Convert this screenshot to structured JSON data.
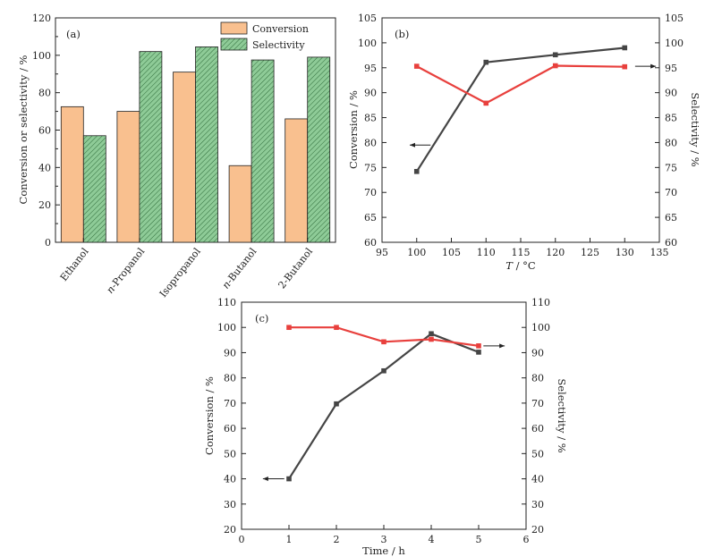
{
  "chart_data": [
    {
      "type": "bar",
      "panel": "(a)",
      "categories": [
        "Ethanol",
        "n-Propanol",
        "Isopropanol",
        "n-Butanol",
        "2-Butanol"
      ],
      "category_italic_prefix": [
        "",
        "n",
        "",
        "n",
        ""
      ],
      "category_rest": [
        "Ethanol",
        "-Propanol",
        "Isopropanol",
        "-Butanol",
        "2-Butanol"
      ],
      "series": [
        {
          "name": "Conversion",
          "values": [
            72.5,
            70,
            91,
            41,
            66
          ],
          "color": "#f9c08f"
        },
        {
          "name": "Selectivity",
          "values": [
            57,
            102,
            104.5,
            97.5,
            99
          ],
          "color": "#7dc08a"
        }
      ],
      "title": "",
      "xlabel": "",
      "ylabel": "Conversion or selectivity / %",
      "ylim": [
        0,
        120
      ],
      "yticks": [
        0,
        20,
        40,
        60,
        80,
        100,
        120
      ],
      "legend": "top-right",
      "grid": false
    },
    {
      "type": "line",
      "panel": "(b)",
      "x": [
        100,
        110,
        120,
        130
      ],
      "series": [
        {
          "name": "Conversion",
          "axis": "left",
          "values": [
            74.2,
            96.1,
            97.6,
            99
          ],
          "color": "#454545"
        },
        {
          "name": "Selectivity",
          "axis": "right",
          "values": [
            95.3,
            87.9,
            95.4,
            95.2
          ],
          "color": "#e8403d"
        }
      ],
      "xlabel_italic": "T",
      "xlabel_rest": " / °C",
      "ylabel": "Conversion / %",
      "ylabel_right": "Selectivity / %",
      "xlim": [
        95,
        135
      ],
      "xticks": [
        95,
        100,
        105,
        110,
        115,
        120,
        125,
        130,
        135
      ],
      "ylim": [
        60,
        105
      ],
      "yticks": [
        60,
        65,
        70,
        75,
        80,
        85,
        90,
        95,
        100,
        105
      ],
      "ylim_right": [
        60,
        105
      ],
      "yticks_right": [
        60,
        65,
        70,
        75,
        80,
        85,
        90,
        95,
        100,
        105
      ],
      "arrows": [
        {
          "direction": "left",
          "x_from": 102,
          "x_to": 99,
          "y": 79.5,
          "axis": "left"
        },
        {
          "direction": "right",
          "x_from": 131.5,
          "x_to": 134.5,
          "y": 95.3,
          "axis": "right"
        }
      ],
      "grid": false
    },
    {
      "type": "line",
      "panel": "(c)",
      "x": [
        1,
        2,
        3,
        4,
        5
      ],
      "series": [
        {
          "name": "Conversion",
          "axis": "left",
          "values": [
            40,
            69.7,
            82.8,
            97.5,
            90.2
          ],
          "color": "#454545"
        },
        {
          "name": "Selectivity",
          "axis": "right",
          "values": [
            100,
            100,
            94.3,
            95.3,
            92.7
          ],
          "color": "#e8403d"
        }
      ],
      "xlabel": "Time / h",
      "ylabel": "Conversion / %",
      "ylabel_right": "Selectivity / %",
      "xlim": [
        0,
        6
      ],
      "xticks": [
        0,
        1,
        2,
        3,
        4,
        5,
        6
      ],
      "ylim": [
        20,
        110
      ],
      "yticks": [
        20,
        30,
        40,
        50,
        60,
        70,
        80,
        90,
        100,
        110
      ],
      "ylim_right": [
        20,
        110
      ],
      "yticks_right": [
        20,
        30,
        40,
        50,
        60,
        70,
        80,
        90,
        100,
        110
      ],
      "arrows": [
        {
          "direction": "left",
          "x_from": 0.9,
          "x_to": 0.45,
          "y": 40,
          "axis": "left"
        },
        {
          "direction": "right",
          "x_from": 5.1,
          "x_to": 5.55,
          "y": 92.7,
          "axis": "right"
        }
      ],
      "grid": false
    }
  ]
}
